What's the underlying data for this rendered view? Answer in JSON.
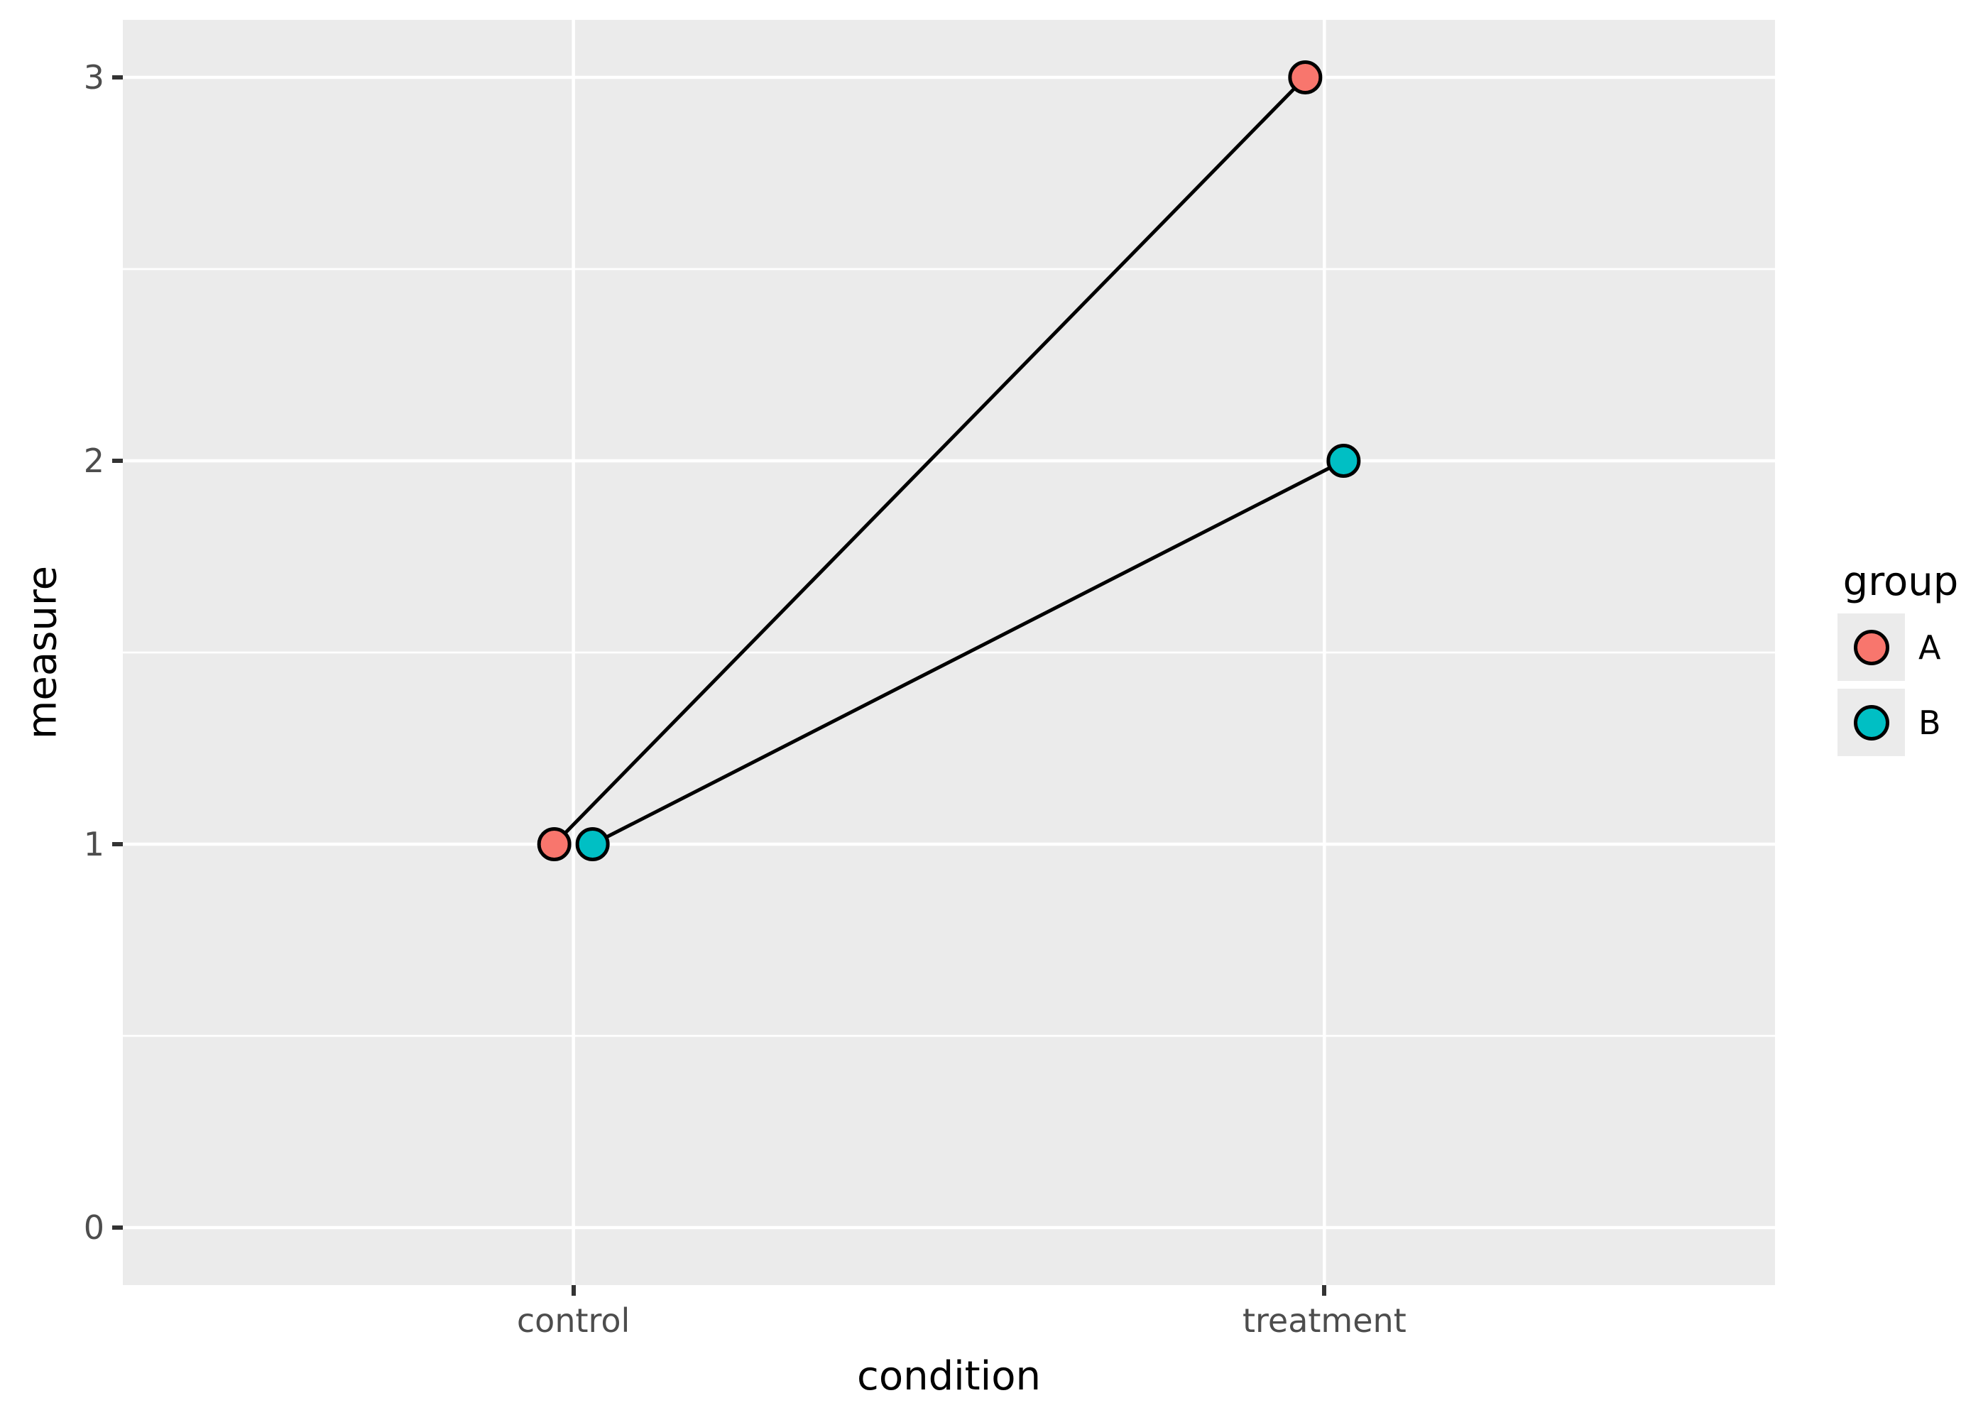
{
  "chart_data": {
    "type": "line",
    "title": "",
    "xlabel": "condition",
    "ylabel": "measure",
    "categories": [
      "control",
      "treatment"
    ],
    "series": [
      {
        "name": "A",
        "color": "#F8766D",
        "values": [
          1,
          3
        ]
      },
      {
        "name": "B",
        "color": "#00BFC4",
        "values": [
          1,
          2
        ]
      }
    ],
    "y_ticks": [
      0,
      1,
      2,
      3
    ],
    "y_tick_labels": [
      "0",
      "1",
      "2",
      "3"
    ],
    "y_minor_ticks": [
      0.5,
      1.5,
      2.5
    ],
    "ylim": [
      -0.15,
      3.15
    ],
    "grid": "on",
    "legend_title": "group",
    "legend_position": "right",
    "style": {
      "panel_background": "#EBEBEB",
      "gridline_color": "#FFFFFF",
      "line_color": "#000000",
      "point_outline_color": "#000000",
      "tick_label_color": "#4D4D4D",
      "tick_mark_color": "#333333",
      "axis_title_color": "#000000"
    }
  }
}
